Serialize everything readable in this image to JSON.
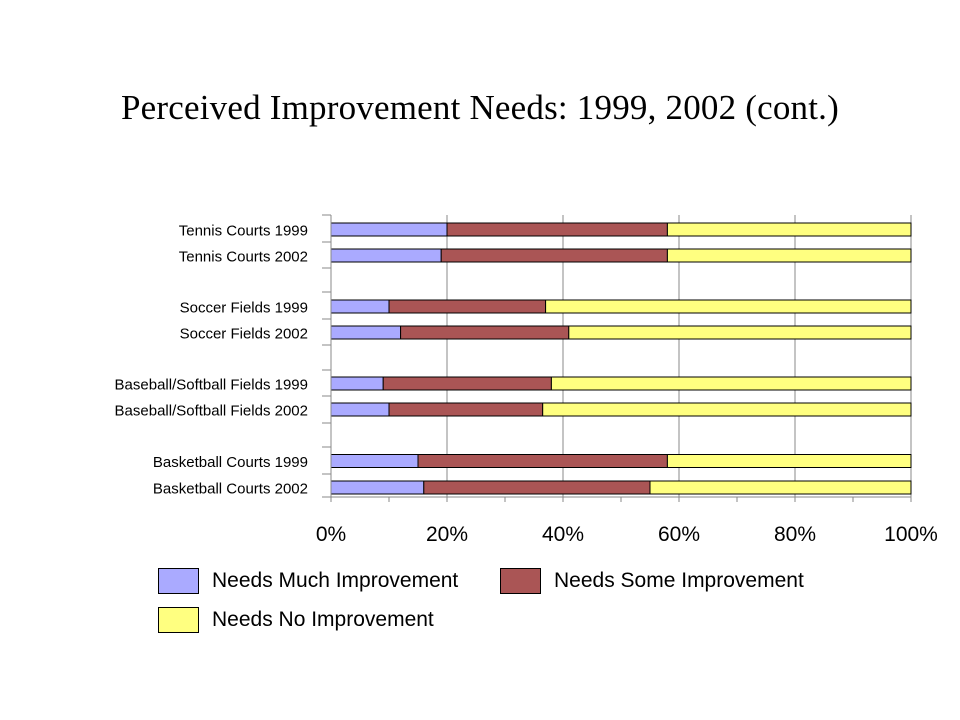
{
  "chart_data": {
    "type": "bar",
    "orientation": "horizontal",
    "stacked": true,
    "normalized": true,
    "title": "Perceived Improvement Needs: 1999, 2002 (cont.)",
    "categories": [
      "Tennis Courts 1999",
      "Tennis Courts 2002",
      "Soccer Fields 1999",
      "Soccer Fields 2002",
      "Baseball/Softball Fields 1999",
      "Baseball/Softball Fields 2002",
      "Basketball Courts 1999",
      "Basketball Courts 2002"
    ],
    "groups": [
      [
        0,
        1
      ],
      [
        2,
        3
      ],
      [
        4,
        5
      ],
      [
        6,
        7
      ]
    ],
    "series": [
      {
        "name": "Needs Much Improvement",
        "color": "#aaaaff",
        "values": [
          20,
          19,
          10,
          12,
          9,
          10,
          15,
          16
        ]
      },
      {
        "name": "Needs Some Improvement",
        "color": "#aa5555",
        "values": [
          38,
          39,
          27,
          29,
          29,
          26.5,
          43,
          39
        ]
      },
      {
        "name": "Needs No Improvement",
        "color": "#ffff80",
        "values": [
          42,
          42,
          63,
          59,
          62,
          63.5,
          42,
          45
        ]
      }
    ],
    "xlim": [
      0,
      100
    ],
    "xticks": [
      "0%",
      "20%",
      "40%",
      "60%",
      "80%",
      "100%"
    ],
    "grid": "vertical",
    "legend_position": "bottom"
  }
}
